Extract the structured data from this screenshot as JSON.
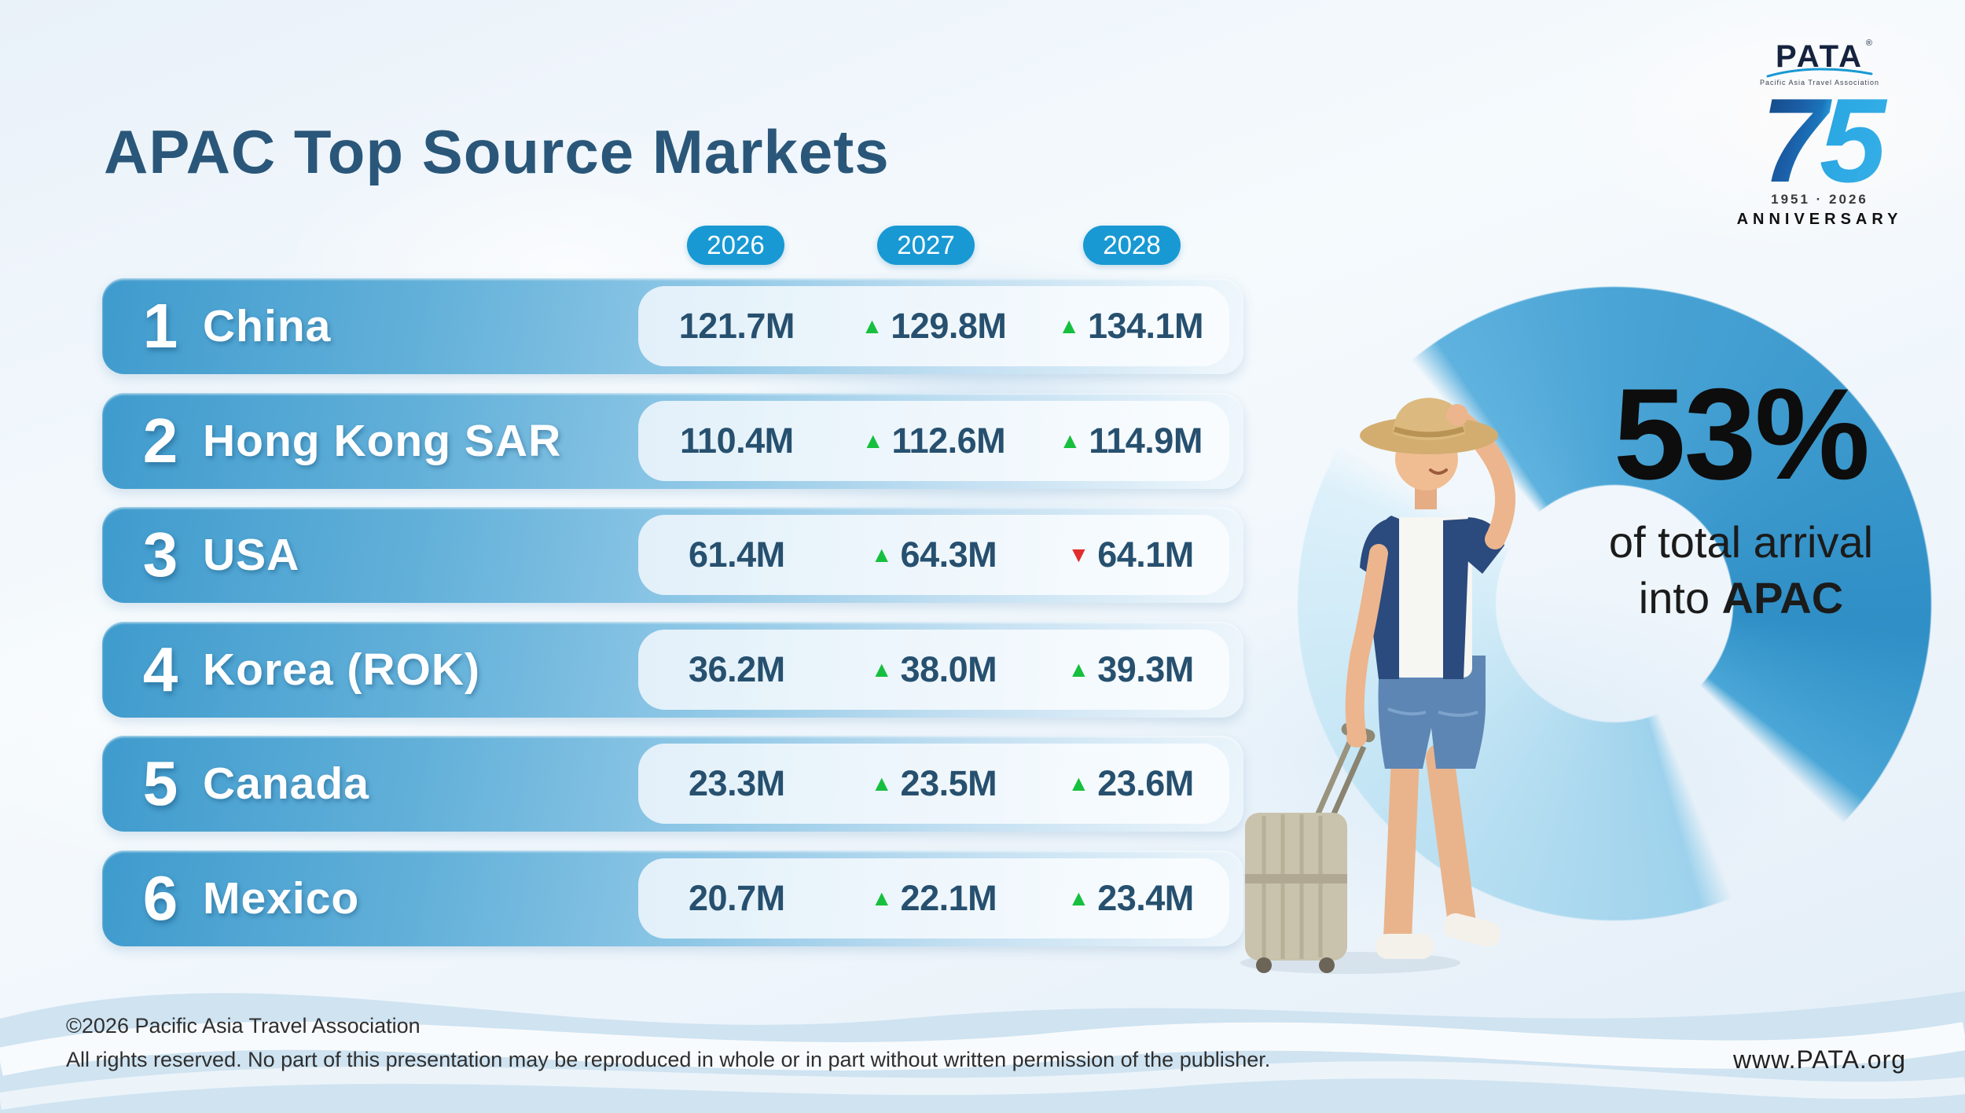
{
  "header": {
    "title": "APAC Top Source Markets"
  },
  "logo": {
    "brand": "PATA",
    "registered": "®",
    "subtitle": "Pacific Asia Travel Association",
    "number": "75",
    "years": "1951 · 2026",
    "anniversary": "ANNIVERSARY"
  },
  "table": {
    "year_headers": [
      "2026",
      "2027",
      "2028"
    ],
    "rows": [
      {
        "rank": "1",
        "market": "China",
        "values": [
          {
            "value": "121.7M",
            "trend": null
          },
          {
            "value": "129.8M",
            "trend": "up"
          },
          {
            "value": "134.1M",
            "trend": "up"
          }
        ]
      },
      {
        "rank": "2",
        "market": "Hong Kong SAR",
        "values": [
          {
            "value": "110.4M",
            "trend": null
          },
          {
            "value": "112.6M",
            "trend": "up"
          },
          {
            "value": "114.9M",
            "trend": "up"
          }
        ]
      },
      {
        "rank": "3",
        "market": "USA",
        "values": [
          {
            "value": "61.4M",
            "trend": null
          },
          {
            "value": "64.3M",
            "trend": "up"
          },
          {
            "value": "64.1M",
            "trend": "down"
          }
        ]
      },
      {
        "rank": "4",
        "market": "Korea (ROK)",
        "values": [
          {
            "value": "36.2M",
            "trend": null
          },
          {
            "value": "38.0M",
            "trend": "up"
          },
          {
            "value": "39.3M",
            "trend": "up"
          }
        ]
      },
      {
        "rank": "5",
        "market": "Canada",
        "values": [
          {
            "value": "23.3M",
            "trend": null
          },
          {
            "value": "23.5M",
            "trend": "up"
          },
          {
            "value": "23.6M",
            "trend": "up"
          }
        ]
      },
      {
        "rank": "6",
        "market": "Mexico",
        "values": [
          {
            "value": "20.7M",
            "trend": null
          },
          {
            "value": "22.1M",
            "trend": "up"
          },
          {
            "value": "23.4M",
            "trend": "up"
          }
        ]
      }
    ]
  },
  "stat": {
    "percent": "53%",
    "line1": "of total arrival",
    "line2_prefix": "into ",
    "line2_bold": "APAC"
  },
  "footer": {
    "copyright": "©2026 Pacific Asia Travel Association",
    "rights": "All rights reserved. No part of this presentation may be reproduced in whole or in part without written permission of the publisher.",
    "website": "www.PATA.org"
  },
  "icons": {
    "trend_up": "▲",
    "trend_down": "▼"
  },
  "colors": {
    "title_navy": "#2a5779",
    "chip_blue": "#1899d3",
    "bar_blue": "#3f9bcd",
    "value_navy": "#27506f",
    "trend_green": "#17bf3f",
    "trend_red": "#e22d2d",
    "ring_blue": "#2f8fc6",
    "stat_black": "#0d0d0d",
    "wave_blue": "#cfe3f1"
  },
  "chart_data": {
    "type": "table",
    "title": "APAC Top Source Markets",
    "categories": [
      "2026",
      "2027",
      "2028"
    ],
    "unit": "millions of arrivals",
    "series": [
      {
        "rank": 1,
        "name": "China",
        "values_millions": [
          121.7,
          129.8,
          134.1
        ],
        "trends": [
          null,
          "up",
          "up"
        ]
      },
      {
        "rank": 2,
        "name": "Hong Kong SAR",
        "values_millions": [
          110.4,
          112.6,
          114.9
        ],
        "trends": [
          null,
          "up",
          "up"
        ]
      },
      {
        "rank": 3,
        "name": "USA",
        "values_millions": [
          61.4,
          64.3,
          64.1
        ],
        "trends": [
          null,
          "up",
          "down"
        ]
      },
      {
        "rank": 4,
        "name": "Korea (ROK)",
        "values_millions": [
          36.2,
          38.0,
          39.3
        ],
        "trends": [
          null,
          "up",
          "up"
        ]
      },
      {
        "rank": 5,
        "name": "Canada",
        "values_millions": [
          23.3,
          23.5,
          23.6
        ],
        "trends": [
          null,
          "up",
          "up"
        ]
      },
      {
        "rank": 6,
        "name": "Mexico",
        "values_millions": [
          20.7,
          22.1,
          23.4
        ],
        "trends": [
          null,
          "up",
          "up"
        ]
      }
    ],
    "annotation": {
      "percent": 53,
      "label": "of total arrival into APAC"
    }
  }
}
